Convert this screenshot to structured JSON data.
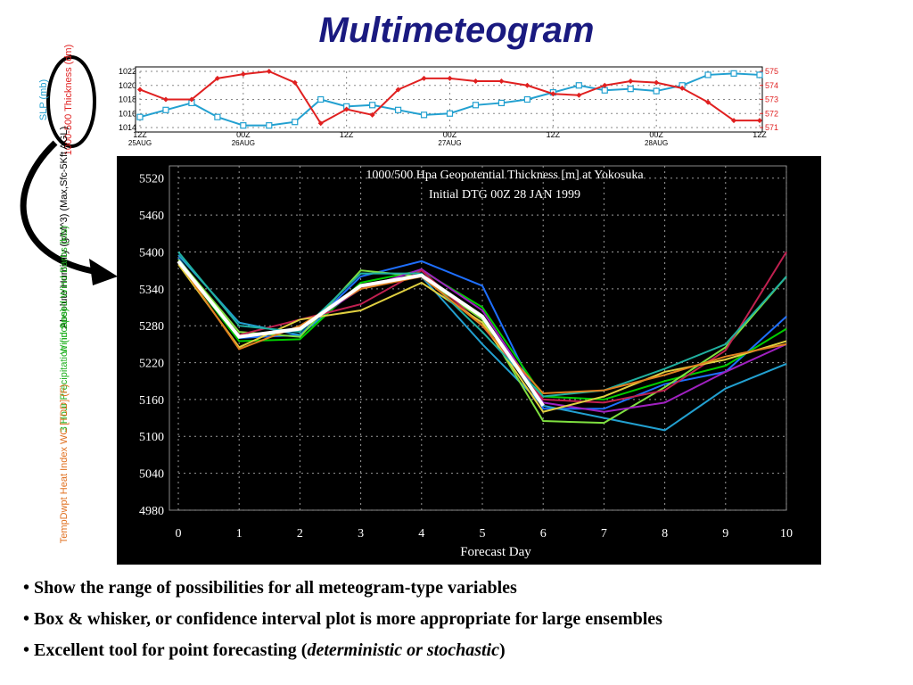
{
  "title": "Multimeteogram",
  "side_labels": [
    {
      "text": "SLP (mb)",
      "color": "#22a0d0"
    },
    {
      "text": "1000-500 Thickness (dm)",
      "color": "#e02020"
    },
    {
      "text": "Absolute Humidity (g/M^3) (Max,Sfc-5Kft AGL)",
      "color": "#000000"
    },
    {
      "text": "Wind Speed Wind Barbs (kts)",
      "color": "#20b020"
    },
    {
      "text": "3 Hour Precipitation (inches)",
      "color": "#20b020"
    },
    {
      "text": "TempDwpt Heat Index WC [TDD] (F)",
      "color": "#e07020"
    }
  ],
  "chart_data": [
    {
      "type": "line",
      "x": [
        0,
        3,
        6,
        9,
        12,
        15,
        18,
        21,
        24,
        27,
        30,
        33,
        36,
        39,
        42,
        45,
        48,
        51,
        54,
        57,
        60,
        63,
        66,
        69,
        72
      ],
      "xlim": [
        0,
        72
      ],
      "xticks": [
        {
          "value": 0,
          "label": "12Z"
        },
        {
          "value": 12,
          "label": "00Z"
        },
        {
          "value": 24,
          "label": "12Z"
        },
        {
          "value": 36,
          "label": "00Z"
        },
        {
          "value": 48,
          "label": "12Z"
        },
        {
          "value": 60,
          "label": "00Z"
        },
        {
          "value": 72,
          "label": "12Z"
        }
      ],
      "date_labels": [
        {
          "value": 0,
          "label": "25AUG"
        },
        {
          "value": 12,
          "label": "26AUG"
        },
        {
          "value": 36,
          "label": "27AUG"
        },
        {
          "value": 60,
          "label": "28AUG"
        }
      ],
      "ylim": [
        1014,
        1022
      ],
      "yticks": [
        1014,
        1016,
        1018,
        1020,
        1022
      ],
      "y2lim": [
        571,
        575
      ],
      "y2ticks": [
        571,
        572,
        573,
        574,
        575
      ],
      "grid": true,
      "series": [
        {
          "color": "#22a0d0",
          "marker": "square",
          "values": [
            1015.5,
            1016.5,
            1017.5,
            1015.5,
            1014.3,
            1014.3,
            1014.8,
            1018,
            1017,
            1017.2,
            1016.5,
            1015.8,
            1016,
            1017.2,
            1017.5,
            1018,
            1019,
            1020,
            1019.3,
            1019.5,
            1019.2,
            1020,
            1021.5,
            1021.7,
            1021.5
          ]
        },
        {
          "color": "#e02020",
          "marker": "diamond",
          "axis": "y2",
          "values": [
            573.7,
            573,
            573,
            574.5,
            574.8,
            575,
            574.2,
            571.3,
            572.3,
            571.9,
            573.7,
            574.5,
            574.5,
            574.3,
            574.3,
            574,
            573.4,
            573.3,
            574,
            574.3,
            574.2,
            573.8,
            572.8,
            571.5,
            571.5
          ]
        }
      ]
    },
    {
      "type": "line",
      "title": "1000/500 Hpa Geopotential Thickness [m] at Yokosuka",
      "subtitle": "Initial DTG 00Z 28 JAN 1999",
      "x_label": "Forecast Day",
      "x": [
        0,
        1,
        2,
        3,
        4,
        5,
        6,
        7,
        8,
        9,
        10
      ],
      "xlim": [
        0,
        10
      ],
      "xticks": [
        0,
        1,
        2,
        3,
        4,
        5,
        6,
        7,
        8,
        9,
        10
      ],
      "ylim": [
        4980,
        5540
      ],
      "yticks": [
        4980,
        5040,
        5100,
        5160,
        5220,
        5280,
        5340,
        5400,
        5460,
        5520
      ],
      "grid": true,
      "series": [
        {
          "color": "#1e6fff",
          "values": [
            5390,
            5260,
            5265,
            5360,
            5385,
            5345,
            5145,
            5145,
            5185,
            5205,
            5295
          ]
        },
        {
          "color": "#22a0d0",
          "values": [
            5395,
            5285,
            5265,
            5345,
            5360,
            5250,
            5150,
            5130,
            5110,
            5178,
            5218
          ]
        },
        {
          "color": "#00cc00",
          "values": [
            5385,
            5255,
            5258,
            5350,
            5370,
            5310,
            5165,
            5160,
            5190,
            5215,
            5275
          ]
        },
        {
          "color": "#7fe040",
          "values": [
            5388,
            5270,
            5262,
            5370,
            5360,
            5290,
            5125,
            5122,
            5180,
            5245,
            5360
          ]
        },
        {
          "color": "#a020c0",
          "values": [
            5385,
            5262,
            5275,
            5340,
            5372,
            5305,
            5155,
            5140,
            5155,
            5205,
            5250
          ]
        },
        {
          "color": "#c02050",
          "values": [
            5380,
            5265,
            5290,
            5315,
            5370,
            5280,
            5160,
            5155,
            5175,
            5240,
            5400
          ]
        },
        {
          "color": "#e0d040",
          "values": [
            5380,
            5245,
            5290,
            5305,
            5350,
            5285,
            5140,
            5165,
            5205,
            5225,
            5255
          ]
        },
        {
          "color": "#20b0a0",
          "values": [
            5400,
            5280,
            5270,
            5365,
            5365,
            5270,
            5165,
            5175,
            5210,
            5250,
            5360
          ]
        },
        {
          "color": "#e08020",
          "values": [
            5385,
            5242,
            5280,
            5340,
            5360,
            5280,
            5170,
            5175,
            5200,
            5230,
            5250
          ]
        },
        {
          "color": "#ffffff",
          "width": 4,
          "values": [
            5385,
            5262,
            5275,
            5345,
            5362,
            5295,
            5150,
            null,
            null,
            null,
            null
          ]
        }
      ]
    }
  ],
  "bullets": [
    [
      "• Show the range of possibilities for all meteogram-type variables"
    ],
    [
      "• Box & whisker, or confidence interval plot is more appropriate for large ensembles"
    ],
    [
      "• Excellent tool for point forecasting (",
      "deterministic or stochastic",
      ")"
    ]
  ]
}
